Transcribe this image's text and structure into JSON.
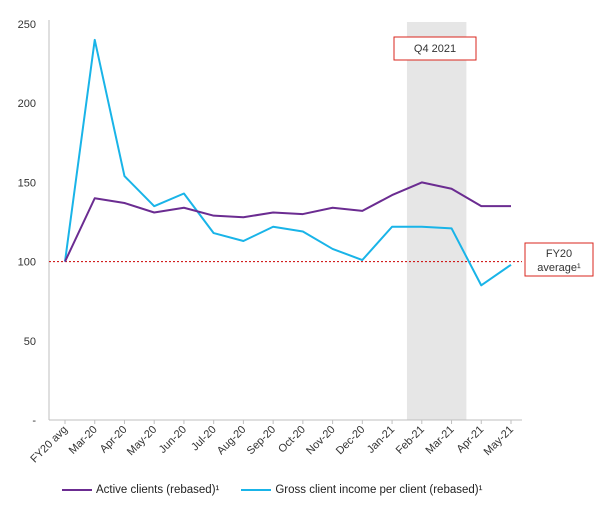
{
  "chart_data": {
    "type": "line",
    "categories": [
      "FY20 avg",
      "Mar-20",
      "Apr-20",
      "May-20",
      "Jun-20",
      "Jul-20",
      "Aug-20",
      "Sep-20",
      "Oct-20",
      "Nov-20",
      "Dec-20",
      "Jan-21",
      "Feb-21",
      "Mar-21",
      "Apr-21",
      "May-21"
    ],
    "series": [
      {
        "name": "Active clients (rebased)¹",
        "color": "#6b2c91",
        "values": [
          100,
          140,
          137,
          131,
          134,
          129,
          128,
          131,
          130,
          134,
          132,
          142,
          150,
          146,
          135,
          135
        ]
      },
      {
        "name": "Gross client income per client (rebased)¹",
        "color": "#19b4e8",
        "values": [
          100,
          240,
          154,
          135,
          143,
          118,
          113,
          122,
          119,
          108,
          101,
          122,
          122,
          121,
          85,
          98
        ]
      }
    ],
    "ylim": [
      0,
      250
    ],
    "yticks": [
      {
        "value": 0,
        "label": "-"
      },
      {
        "value": 50,
        "label": "50"
      },
      {
        "value": 100,
        "label": "100"
      },
      {
        "value": 150,
        "label": "150"
      },
      {
        "value": 200,
        "label": "200"
      },
      {
        "value": 250,
        "label": "250"
      }
    ],
    "reference_line": {
      "value": 100,
      "color": "#cc0000",
      "label_line1": "FY20",
      "label_line2": "average¹"
    },
    "highlight": {
      "from": "Feb-21",
      "to": "Mar-21",
      "label": "Q4 2021",
      "fill": "#e6e6e6",
      "border": "#d9261c"
    },
    "grid": false,
    "legend_position": "bottom-left"
  }
}
